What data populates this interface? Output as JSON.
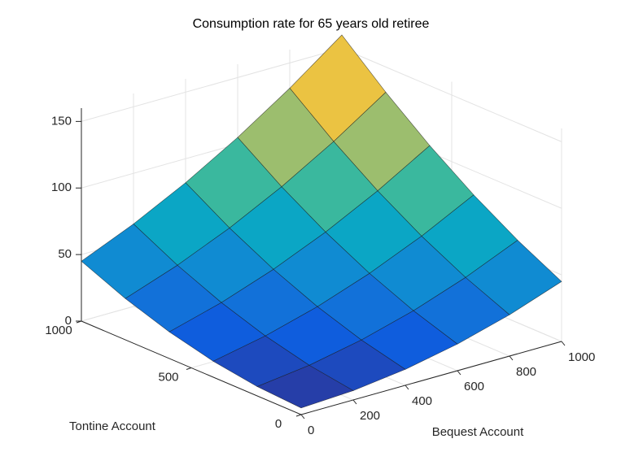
{
  "chart_data": {
    "type": "surface",
    "title": "Consumption rate for 65 years old retiree",
    "xlabel": "Tontine Account",
    "ylabel": "Bequest Account",
    "x": [
      0,
      200,
      400,
      600,
      800,
      1000
    ],
    "y": [
      0,
      200,
      400,
      600,
      800,
      1000
    ],
    "z": [
      [
        5,
        7,
        12,
        20,
        31,
        45
      ],
      [
        7,
        12,
        20,
        31,
        45,
        62
      ],
      [
        12,
        20,
        31,
        45,
        62,
        82
      ],
      [
        20,
        31,
        45,
        62,
        82,
        105
      ],
      [
        31,
        45,
        62,
        82,
        105,
        131
      ],
      [
        45,
        62,
        82,
        105,
        131,
        160
      ]
    ],
    "xlim": [
      0,
      1000
    ],
    "xticks": [
      0,
      500,
      1000
    ],
    "ylim": [
      0,
      1000
    ],
    "yticks": [
      0,
      200,
      400,
      600,
      800,
      1000
    ],
    "zlim": [
      0,
      160
    ],
    "zticks": [
      0,
      50,
      100,
      150
    ],
    "colormap": "parula",
    "grid": true
  }
}
